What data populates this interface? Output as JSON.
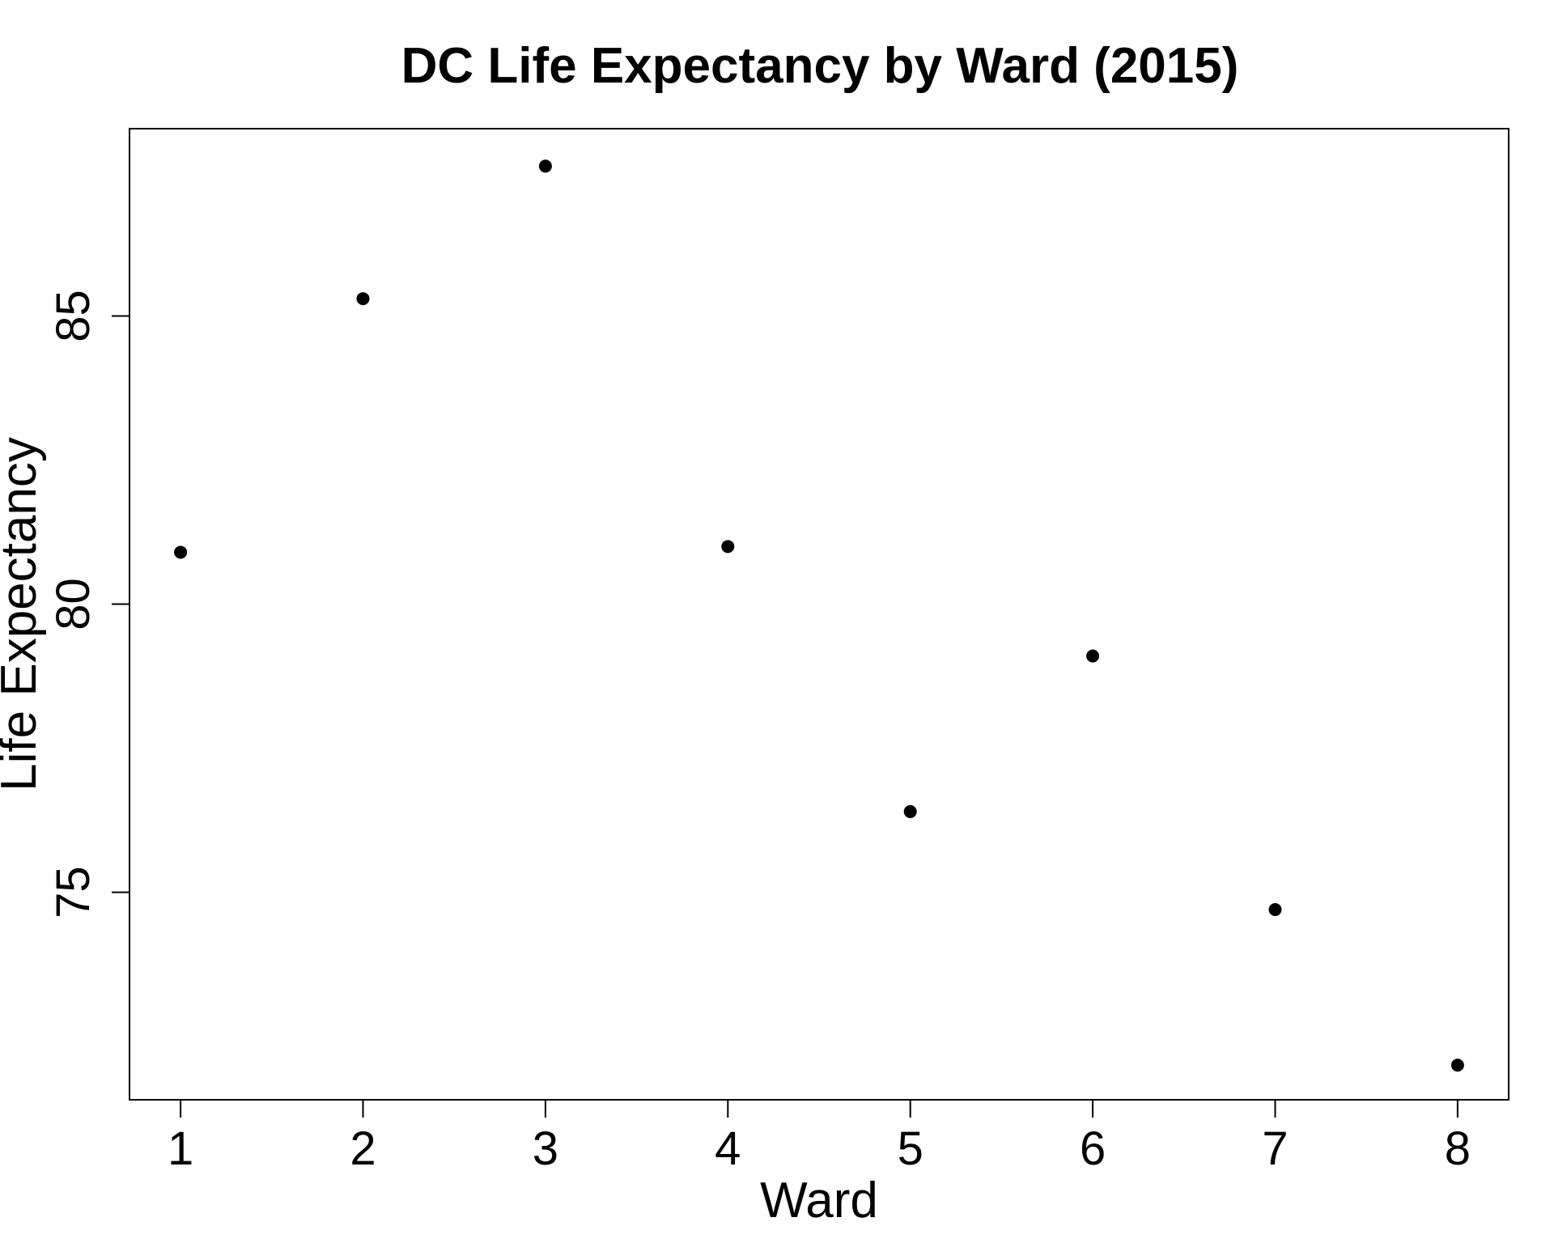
{
  "chart_data": {
    "type": "scatter",
    "title": "DC Life Expectancy by Ward (2015)",
    "xlabel": "Ward",
    "ylabel": "Life Expectancy",
    "x": [
      1,
      2,
      3,
      4,
      5,
      6,
      7,
      8
    ],
    "y": [
      80.9,
      85.3,
      87.6,
      81.0,
      76.4,
      79.1,
      74.7,
      72.0
    ],
    "xlim": [
      0.72,
      8.28
    ],
    "ylim": [
      71.4,
      88.25
    ],
    "xticks": [
      1,
      2,
      3,
      4,
      5,
      6,
      7,
      8
    ],
    "yticks": [
      75,
      80,
      85
    ],
    "grid": false,
    "legend": "none",
    "marker_color": "#000000"
  }
}
